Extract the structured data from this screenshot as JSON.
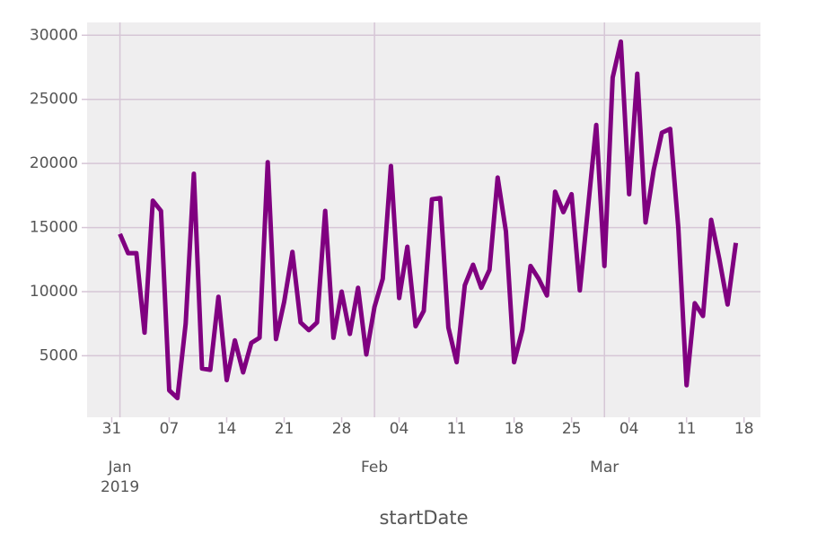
{
  "chart_data": {
    "type": "line",
    "xlabel": "startDate",
    "x": [
      "2019-01-01",
      "2019-01-02",
      "2019-01-03",
      "2019-01-04",
      "2019-01-05",
      "2019-01-06",
      "2019-01-07",
      "2019-01-08",
      "2019-01-09",
      "2019-01-10",
      "2019-01-11",
      "2019-01-12",
      "2019-01-13",
      "2019-01-14",
      "2019-01-15",
      "2019-01-16",
      "2019-01-17",
      "2019-01-18",
      "2019-01-19",
      "2019-01-20",
      "2019-01-21",
      "2019-01-22",
      "2019-01-23",
      "2019-01-24",
      "2019-01-25",
      "2019-01-26",
      "2019-01-27",
      "2019-01-28",
      "2019-01-29",
      "2019-01-30",
      "2019-01-31",
      "2019-02-01",
      "2019-02-02",
      "2019-02-03",
      "2019-02-04",
      "2019-02-05",
      "2019-02-06",
      "2019-02-07",
      "2019-02-08",
      "2019-02-09",
      "2019-02-10",
      "2019-02-11",
      "2019-02-12",
      "2019-02-13",
      "2019-02-14",
      "2019-02-15",
      "2019-02-16",
      "2019-02-17",
      "2019-02-18",
      "2019-02-19",
      "2019-02-20",
      "2019-02-21",
      "2019-02-22",
      "2019-02-23",
      "2019-02-24",
      "2019-02-25",
      "2019-02-26",
      "2019-02-27",
      "2019-02-28",
      "2019-03-01",
      "2019-03-02",
      "2019-03-03",
      "2019-03-04",
      "2019-03-05",
      "2019-03-06",
      "2019-03-07",
      "2019-03-08",
      "2019-03-09",
      "2019-03-10",
      "2019-03-11",
      "2019-03-12",
      "2019-03-13",
      "2019-03-14",
      "2019-03-15",
      "2019-03-16",
      "2019-03-17"
    ],
    "values": [
      14500,
      13000,
      13000,
      6800,
      17100,
      16300,
      2300,
      1700,
      7500,
      19200,
      4000,
      3900,
      9600,
      3100,
      6200,
      3700,
      6000,
      6400,
      20100,
      6300,
      9200,
      13100,
      7600,
      7000,
      7600,
      16300,
      6400,
      10000,
      6700,
      10300,
      5100,
      8800,
      11000,
      19800,
      9500,
      13500,
      7300,
      8500,
      17200,
      17300,
      7200,
      4500,
      10500,
      12100,
      10300,
      11700,
      18900,
      14700,
      4500,
      7000,
      12000,
      11000,
      9700,
      17800,
      16200,
      17600,
      10100,
      16500,
      23000,
      12000,
      26700,
      29500,
      17600,
      27000,
      15400,
      19500,
      22400,
      22700,
      15000,
      2700,
      9100,
      8100,
      15600,
      12500,
      9000,
      13800
    ],
    "color": "#800080",
    "xlim": [
      "2018-12-28",
      "2019-03-20"
    ],
    "xticks": [
      {
        "value": "2018-12-31",
        "label": "31"
      },
      {
        "value": "2019-01-07",
        "label": "07"
      },
      {
        "value": "2019-01-14",
        "label": "14"
      },
      {
        "value": "2019-01-21",
        "label": "21"
      },
      {
        "value": "2019-01-28",
        "label": "28"
      },
      {
        "value": "2019-02-04",
        "label": "04"
      },
      {
        "value": "2019-02-11",
        "label": "11"
      },
      {
        "value": "2019-02-18",
        "label": "18"
      },
      {
        "value": "2019-02-25",
        "label": "25"
      },
      {
        "value": "2019-03-04",
        "label": "04"
      },
      {
        "value": "2019-03-11",
        "label": "11"
      },
      {
        "value": "2019-03-18",
        "label": "18"
      }
    ],
    "major_xticks": [
      {
        "value": "2019-01-01",
        "label": "Jan\n2019"
      },
      {
        "value": "2019-02-01",
        "label": "Feb"
      },
      {
        "value": "2019-03-01",
        "label": "Mar"
      }
    ],
    "ylim": [
      200,
      31000
    ],
    "yticks": [
      5000,
      10000,
      15000,
      20000,
      25000,
      30000
    ],
    "grid": true
  }
}
